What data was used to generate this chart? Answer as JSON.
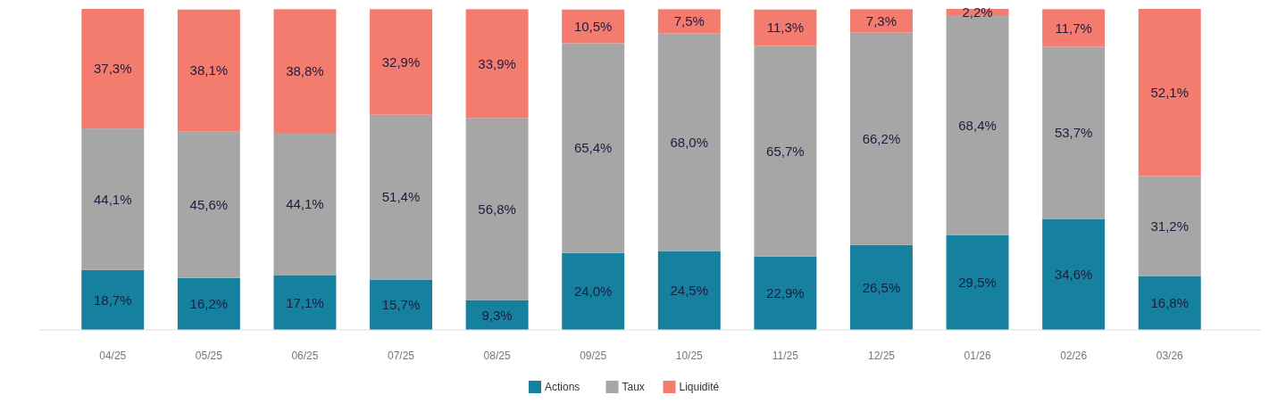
{
  "chart_data": {
    "type": "bar",
    "stacked": true,
    "legend": "bottom",
    "categories": [
      "04/25",
      "05/25",
      "06/25",
      "07/25",
      "08/25",
      "09/25",
      "10/25",
      "11/25",
      "12/25",
      "01/26",
      "02/26",
      "03/26"
    ],
    "series": [
      {
        "name": "Actions",
        "color": "#16809f",
        "values": [
          18.7,
          16.2,
          17.1,
          15.7,
          9.3,
          24.0,
          24.5,
          22.9,
          26.5,
          29.5,
          34.6,
          16.8
        ],
        "value_labels": [
          "18,7%",
          "16,2%",
          "17,1%",
          "15,7%",
          "9,3%",
          "24,0%",
          "24,5%",
          "22,9%",
          "26,5%",
          "29,5%",
          "34,6%",
          "16,8%"
        ]
      },
      {
        "name": "Taux",
        "color": "#a6a6a6",
        "values": [
          44.1,
          45.6,
          44.1,
          51.4,
          56.8,
          65.4,
          68.0,
          65.7,
          66.2,
          68.4,
          53.7,
          31.2
        ],
        "value_labels": [
          "44,1%",
          "45,6%",
          "44,1%",
          "51,4%",
          "56,8%",
          "65,4%",
          "68,0%",
          "65,7%",
          "66,2%",
          "68,4%",
          "53,7%",
          "31,2%"
        ]
      },
      {
        "name": "Liquidité",
        "color": "#f47c6f",
        "values": [
          37.3,
          38.1,
          38.8,
          32.9,
          33.9,
          10.5,
          7.5,
          11.3,
          7.3,
          2.2,
          11.7,
          52.1
        ],
        "value_labels": [
          "37,3%",
          "38,1%",
          "38,8%",
          "32,9%",
          "33,9%",
          "10,5%",
          "7,5%",
          "11,3%",
          "7,3%",
          "2,2%",
          "11,7%",
          "52,1%"
        ]
      }
    ]
  }
}
